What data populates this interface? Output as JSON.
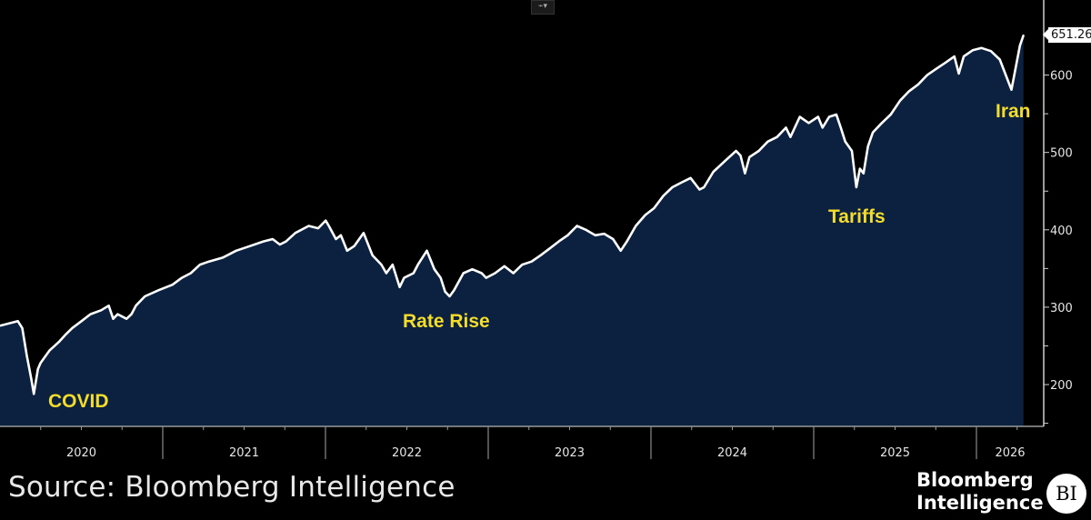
{
  "chart_data": {
    "type": "area",
    "title": "",
    "xlabel": "",
    "ylabel": "",
    "ylim": [
      146,
      697
    ],
    "xlim": [
      "2020-01-01",
      "2026-05-01"
    ],
    "grid": false,
    "y_ticks": [
      200,
      300,
      400,
      500,
      600
    ],
    "x_tick_labels": [
      "2020",
      "2021",
      "2022",
      "2023",
      "2024",
      "2025",
      "2026"
    ],
    "last_value_label": "651.26",
    "colors": {
      "line": "#ffffff",
      "fill": "#0b213f",
      "background": "#000000",
      "annotation": "#f3dc2b"
    },
    "annotations": [
      {
        "text": "COVID",
        "date": "2020-03-17"
      },
      {
        "text": "Rate Rise",
        "date": "2022-10-06"
      },
      {
        "text": "Tariffs",
        "date": "2025-04-06"
      },
      {
        "text": "Iran",
        "date": "2026-03-20"
      }
    ],
    "series": [
      {
        "points": [
          [
            "2020-01-01",
            276
          ],
          [
            "2020-02-10",
            282
          ],
          [
            "2020-02-20",
            273
          ],
          [
            "2020-03-01",
            238
          ],
          [
            "2020-03-11",
            208
          ],
          [
            "2020-03-17",
            188
          ],
          [
            "2020-03-26",
            220
          ],
          [
            "2020-04-01",
            228
          ],
          [
            "2020-04-21",
            244
          ],
          [
            "2020-05-12",
            255
          ],
          [
            "2020-05-26",
            264
          ],
          [
            "2020-06-11",
            273
          ],
          [
            "2020-07-02",
            282
          ],
          [
            "2020-07-22",
            291
          ],
          [
            "2020-08-15",
            296
          ],
          [
            "2020-09-01",
            302
          ],
          [
            "2020-09-11",
            285
          ],
          [
            "2020-09-21",
            291
          ],
          [
            "2020-10-11",
            285
          ],
          [
            "2020-10-22",
            291
          ],
          [
            "2020-11-01",
            302
          ],
          [
            "2020-11-21",
            314
          ],
          [
            "2020-12-22",
            322
          ],
          [
            "2021-01-22",
            329
          ],
          [
            "2021-02-12",
            338
          ],
          [
            "2021-03-04",
            344
          ],
          [
            "2021-03-25",
            355
          ],
          [
            "2021-04-14",
            359
          ],
          [
            "2021-05-15",
            364
          ],
          [
            "2021-06-14",
            373
          ],
          [
            "2021-07-15",
            379
          ],
          [
            "2021-08-14",
            385
          ],
          [
            "2021-09-04",
            388
          ],
          [
            "2021-09-20",
            381
          ],
          [
            "2021-10-04",
            385
          ],
          [
            "2021-10-25",
            396
          ],
          [
            "2021-11-24",
            405
          ],
          [
            "2021-12-15",
            402
          ],
          [
            "2022-01-01",
            412
          ],
          [
            "2022-01-08",
            405
          ],
          [
            "2022-01-24",
            388
          ],
          [
            "2022-02-04",
            393
          ],
          [
            "2022-02-18",
            373
          ],
          [
            "2022-03-06",
            379
          ],
          [
            "2022-03-27",
            396
          ],
          [
            "2022-04-16",
            367
          ],
          [
            "2022-05-06",
            355
          ],
          [
            "2022-05-17",
            344
          ],
          [
            "2022-05-31",
            355
          ],
          [
            "2022-06-16",
            326
          ],
          [
            "2022-06-26",
            338
          ],
          [
            "2022-07-17",
            344
          ],
          [
            "2022-07-27",
            355
          ],
          [
            "2022-08-16",
            373
          ],
          [
            "2022-09-02",
            349
          ],
          [
            "2022-09-16",
            338
          ],
          [
            "2022-09-26",
            320
          ],
          [
            "2022-10-06",
            314
          ],
          [
            "2022-10-16",
            322
          ],
          [
            "2022-11-06",
            344
          ],
          [
            "2022-11-26",
            349
          ],
          [
            "2022-12-17",
            344
          ],
          [
            "2022-12-27",
            338
          ],
          [
            "2023-01-16",
            344
          ],
          [
            "2023-02-06",
            353
          ],
          [
            "2023-02-26",
            344
          ],
          [
            "2023-03-18",
            355
          ],
          [
            "2023-04-08",
            359
          ],
          [
            "2023-04-28",
            367
          ],
          [
            "2023-05-19",
            376
          ],
          [
            "2023-06-08",
            385
          ],
          [
            "2023-06-28",
            393
          ],
          [
            "2023-07-19",
            405
          ],
          [
            "2023-08-08",
            400
          ],
          [
            "2023-08-29",
            393
          ],
          [
            "2023-09-18",
            395
          ],
          [
            "2023-10-08",
            388
          ],
          [
            "2023-10-25",
            373
          ],
          [
            "2023-11-08",
            385
          ],
          [
            "2023-11-28",
            405
          ],
          [
            "2023-12-19",
            419
          ],
          [
            "2024-01-08",
            428
          ],
          [
            "2024-01-29",
            444
          ],
          [
            "2024-02-18",
            455
          ],
          [
            "2024-03-09",
            461
          ],
          [
            "2024-03-30",
            467
          ],
          [
            "2024-04-19",
            452
          ],
          [
            "2024-04-29",
            455
          ],
          [
            "2024-05-20",
            475
          ],
          [
            "2024-06-19",
            491
          ],
          [
            "2024-07-10",
            502
          ],
          [
            "2024-07-20",
            496
          ],
          [
            "2024-07-30",
            473
          ],
          [
            "2024-08-09",
            494
          ],
          [
            "2024-08-30",
            502
          ],
          [
            "2024-09-19",
            514
          ],
          [
            "2024-10-10",
            520
          ],
          [
            "2024-10-30",
            532
          ],
          [
            "2024-11-09",
            520
          ],
          [
            "2024-11-30",
            546
          ],
          [
            "2024-12-20",
            538
          ],
          [
            "2025-01-10",
            546
          ],
          [
            "2025-01-20",
            532
          ],
          [
            "2025-02-04",
            546
          ],
          [
            "2025-02-20",
            549
          ],
          [
            "2025-03-02",
            532
          ],
          [
            "2025-03-12",
            514
          ],
          [
            "2025-03-27",
            502
          ],
          [
            "2025-04-06",
            455
          ],
          [
            "2025-04-14",
            479
          ],
          [
            "2025-04-22",
            473
          ],
          [
            "2025-05-02",
            508
          ],
          [
            "2025-05-13",
            526
          ],
          [
            "2025-06-02",
            538
          ],
          [
            "2025-06-22",
            549
          ],
          [
            "2025-07-13",
            567
          ],
          [
            "2025-08-02",
            579
          ],
          [
            "2025-08-23",
            588
          ],
          [
            "2025-09-12",
            600
          ],
          [
            "2025-10-02",
            608
          ],
          [
            "2025-10-23",
            616
          ],
          [
            "2025-11-12",
            624
          ],
          [
            "2025-11-22",
            602
          ],
          [
            "2025-12-03",
            624
          ],
          [
            "2025-12-23",
            632
          ],
          [
            "2026-01-12",
            635
          ],
          [
            "2026-02-02",
            631
          ],
          [
            "2026-02-22",
            620
          ],
          [
            "2026-03-10",
            596
          ],
          [
            "2026-03-20",
            581
          ],
          [
            "2026-03-31",
            614
          ],
          [
            "2026-04-08",
            638
          ],
          [
            "2026-04-16",
            651.26
          ]
        ]
      }
    ]
  },
  "toolbar": {
    "chart_type_icon": "line-chart-icon",
    "chart_type_label": "⌁▾"
  },
  "footer": {
    "source": "Source: Bloomberg Intelligence",
    "logo_line1": "Bloomberg",
    "logo_line2": "Intelligence",
    "logo_badge": "BI"
  }
}
